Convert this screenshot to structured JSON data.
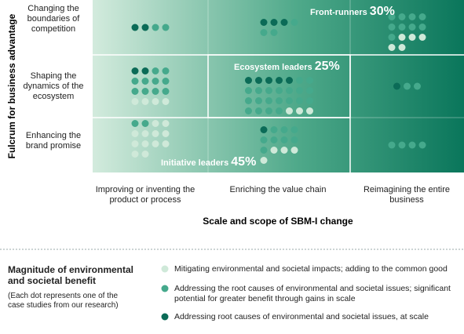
{
  "chart_data": {
    "type": "dot-matrix",
    "y_label": "Fulcrum for business advantage",
    "x_label": "Scale and scope of SBM-I change",
    "rows": [
      "Changing the boundaries of competition",
      "Shaping the dynamics of the ecosystem",
      "Enhancing the brand promise"
    ],
    "columns": [
      "Improving or inventing the product or process",
      "Enriching the value chain",
      "Reimagining the entire business"
    ],
    "series": [
      {
        "name": "Addressing root causes of environmental and societal issues, at scale",
        "color": "#0b6b57",
        "values": [
          [
            2,
            3,
            0
          ],
          [
            2,
            5,
            1
          ],
          [
            0,
            1,
            0
          ]
        ]
      },
      {
        "name": "Addressing the root causes of environmental and societal issues; significant potential for greater benefit through gains in scale",
        "color": "#45a98c",
        "values": [
          [
            2,
            3,
            9
          ],
          [
            10,
            20,
            2
          ],
          [
            2,
            8,
            4
          ]
        ]
      },
      {
        "name": "Mitigating environmental and societal impacts; adding to the common good",
        "color": "#cfe9d9",
        "values": [
          [
            0,
            0,
            5
          ],
          [
            4,
            3,
            0
          ],
          [
            12,
            4,
            0
          ]
        ]
      }
    ],
    "groups": {
      "names": [
        "Front-runners",
        "Ecosystem leaders",
        "Initiative leaders"
      ],
      "values": [
        30,
        25,
        45
      ],
      "value_labels": [
        "30%",
        "25%",
        "45%"
      ]
    },
    "legend_title": "Magnitude of environmental and societal benefit",
    "legend_note": "(Each dot represents one of the case studies from our research)"
  }
}
